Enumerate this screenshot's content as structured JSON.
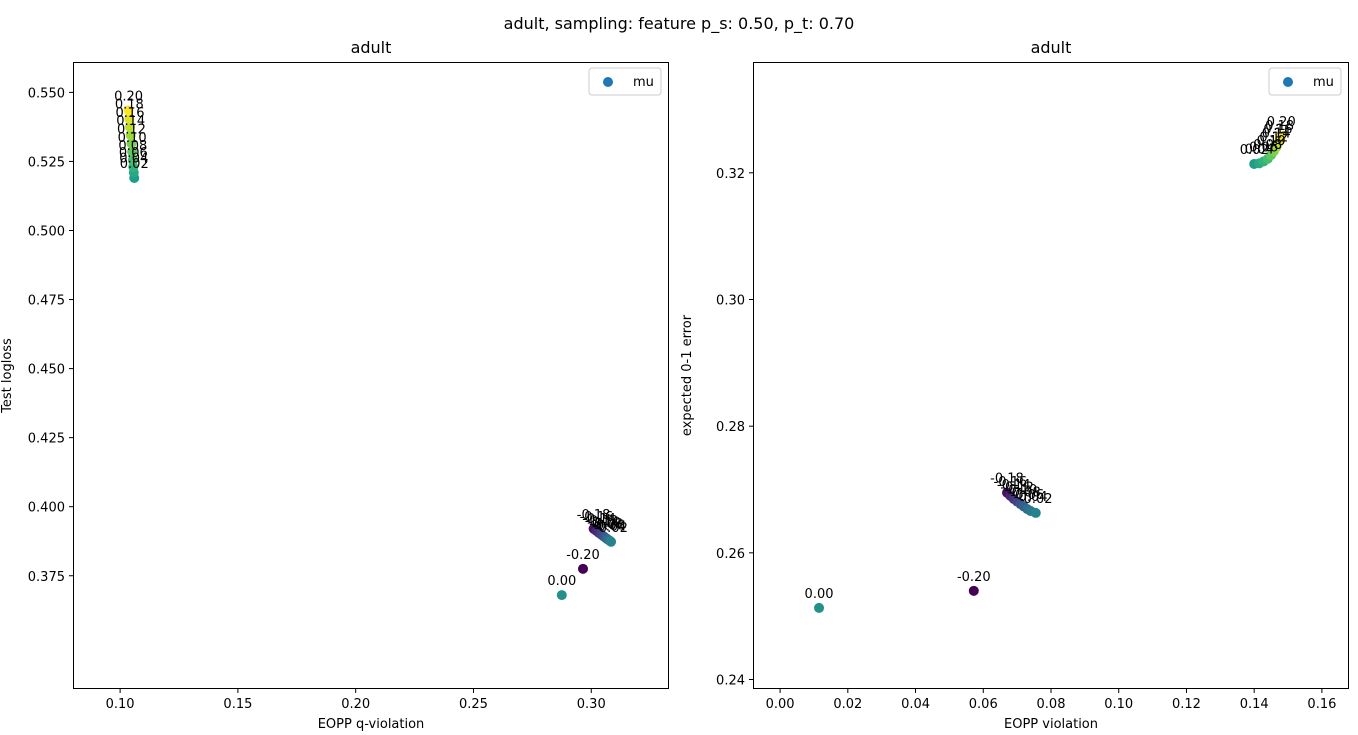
{
  "figure": {
    "suptitle": "adult, sampling: feature p_s: 0.50, p_t: 0.70"
  },
  "chart_data": [
    {
      "type": "scatter",
      "title": "adult",
      "xlabel": "EOPP q-violation",
      "ylabel": "Test logloss",
      "xlim": [
        0.08,
        0.333
      ],
      "ylim": [
        0.334,
        0.561
      ],
      "xticks": [
        0.1,
        0.15,
        0.2,
        0.25,
        0.3
      ],
      "xtick_labels": [
        "0.10",
        "0.15",
        "0.20",
        "0.25",
        "0.30"
      ],
      "yticks": [
        0.375,
        0.4,
        0.425,
        0.45,
        0.475,
        0.5,
        0.525,
        0.55
      ],
      "ytick_labels": [
        "0.375",
        "0.400",
        "0.425",
        "0.450",
        "0.475",
        "0.500",
        "0.525",
        "0.550"
      ],
      "grid": false,
      "legend": {
        "position": "top-right",
        "entries": [
          "mu"
        ],
        "marker_color": "#1f77b4"
      },
      "colormap": "viridis",
      "color_range": [
        -0.2,
        0.2
      ],
      "series": [
        {
          "name": "mu",
          "points": [
            {
              "mu": -0.2,
              "x": 0.2965,
              "y": 0.3775,
              "label": "-0.20"
            },
            {
              "mu": -0.18,
              "x": 0.301,
              "y": 0.392,
              "label": "-0.18"
            },
            {
              "mu": -0.16,
              "x": 0.3022,
              "y": 0.3912,
              "label": "-0.16"
            },
            {
              "mu": -0.14,
              "x": 0.3033,
              "y": 0.3905,
              "label": "-0.14"
            },
            {
              "mu": -0.12,
              "x": 0.3044,
              "y": 0.3898,
              "label": "-0.12"
            },
            {
              "mu": -0.1,
              "x": 0.3054,
              "y": 0.3892,
              "label": "-0.10"
            },
            {
              "mu": -0.08,
              "x": 0.3063,
              "y": 0.3886,
              "label": "-0.08"
            },
            {
              "mu": -0.06,
              "x": 0.3071,
              "y": 0.3881,
              "label": "-0.06"
            },
            {
              "mu": -0.04,
              "x": 0.3078,
              "y": 0.3877,
              "label": "-0.04"
            },
            {
              "mu": -0.02,
              "x": 0.3084,
              "y": 0.3873,
              "label": "-0.02"
            },
            {
              "mu": 0.0,
              "x": 0.2875,
              "y": 0.368,
              "label": "0.00"
            },
            {
              "mu": 0.02,
              "x": 0.106,
              "y": 0.519,
              "label": "0.02"
            },
            {
              "mu": 0.04,
              "x": 0.1058,
              "y": 0.521,
              "label": "0.04"
            },
            {
              "mu": 0.06,
              "x": 0.1056,
              "y": 0.523,
              "label": "0.06"
            },
            {
              "mu": 0.08,
              "x": 0.1054,
              "y": 0.5255,
              "label": "0.08"
            },
            {
              "mu": 0.1,
              "x": 0.1051,
              "y": 0.5285,
              "label": "0.10"
            },
            {
              "mu": 0.12,
              "x": 0.1048,
              "y": 0.5315,
              "label": "0.12"
            },
            {
              "mu": 0.14,
              "x": 0.1045,
              "y": 0.5345,
              "label": "0.14"
            },
            {
              "mu": 0.16,
              "x": 0.1042,
              "y": 0.5375,
              "label": "0.16"
            },
            {
              "mu": 0.18,
              "x": 0.1039,
              "y": 0.5405,
              "label": "0.18"
            },
            {
              "mu": 0.2,
              "x": 0.1036,
              "y": 0.5435,
              "label": "0.20"
            }
          ]
        }
      ]
    },
    {
      "type": "scatter",
      "title": "adult",
      "xlabel": "EOPP violation",
      "ylabel": "expected 0-1 error",
      "xlim": [
        -0.008,
        0.168
      ],
      "ylim": [
        0.2385,
        0.3375
      ],
      "xticks": [
        0.0,
        0.02,
        0.04,
        0.06,
        0.08,
        0.1,
        0.12,
        0.14,
        0.16
      ],
      "xtick_labels": [
        "0.00",
        "0.02",
        "0.04",
        "0.06",
        "0.08",
        "0.10",
        "0.12",
        "0.14",
        "0.16"
      ],
      "yticks": [
        0.24,
        0.26,
        0.28,
        0.3,
        0.32
      ],
      "ytick_labels": [
        "0.24",
        "0.26",
        "0.28",
        "0.30",
        "0.32"
      ],
      "grid": false,
      "legend": {
        "position": "top-right",
        "entries": [
          "mu"
        ],
        "marker_color": "#1f77b4"
      },
      "colormap": "viridis",
      "color_range": [
        -0.2,
        0.2
      ],
      "series": [
        {
          "name": "mu",
          "points": [
            {
              "mu": -0.2,
              "x": 0.0572,
              "y": 0.254,
              "label": "-0.20"
            },
            {
              "mu": -0.18,
              "x": 0.067,
              "y": 0.2695,
              "label": "-0.18"
            },
            {
              "mu": -0.16,
              "x": 0.068,
              "y": 0.269,
              "label": "-0.16"
            },
            {
              "mu": -0.14,
              "x": 0.069,
              "y": 0.2685,
              "label": "-0.14"
            },
            {
              "mu": -0.12,
              "x": 0.07,
              "y": 0.2681,
              "label": "-0.12"
            },
            {
              "mu": -0.1,
              "x": 0.071,
              "y": 0.2677,
              "label": "-0.10"
            },
            {
              "mu": -0.08,
              "x": 0.072,
              "y": 0.2673,
              "label": "-0.08"
            },
            {
              "mu": -0.06,
              "x": 0.073,
              "y": 0.2669,
              "label": "-0.06"
            },
            {
              "mu": -0.04,
              "x": 0.074,
              "y": 0.2666,
              "label": "-0.04"
            },
            {
              "mu": -0.02,
              "x": 0.0755,
              "y": 0.2663,
              "label": "-0.02"
            },
            {
              "mu": 0.0,
              "x": 0.0115,
              "y": 0.2513,
              "label": "0.00"
            },
            {
              "mu": 0.02,
              "x": 0.14,
              "y": 0.3214,
              "label": "0.02"
            },
            {
              "mu": 0.04,
              "x": 0.1415,
              "y": 0.3215,
              "label": "0.04"
            },
            {
              "mu": 0.06,
              "x": 0.1428,
              "y": 0.3218,
              "label": "0.06"
            },
            {
              "mu": 0.08,
              "x": 0.144,
              "y": 0.3222,
              "label": "0.08"
            },
            {
              "mu": 0.1,
              "x": 0.145,
              "y": 0.3228,
              "label": "0.10"
            },
            {
              "mu": 0.12,
              "x": 0.1458,
              "y": 0.3234,
              "label": "0.12"
            },
            {
              "mu": 0.14,
              "x": 0.1465,
              "y": 0.324,
              "label": "0.14"
            },
            {
              "mu": 0.16,
              "x": 0.147,
              "y": 0.3246,
              "label": "0.16"
            },
            {
              "mu": 0.18,
              "x": 0.1475,
              "y": 0.3252,
              "label": "0.18"
            },
            {
              "mu": 0.2,
              "x": 0.148,
              "y": 0.3258,
              "label": "0.20"
            }
          ]
        }
      ]
    }
  ]
}
